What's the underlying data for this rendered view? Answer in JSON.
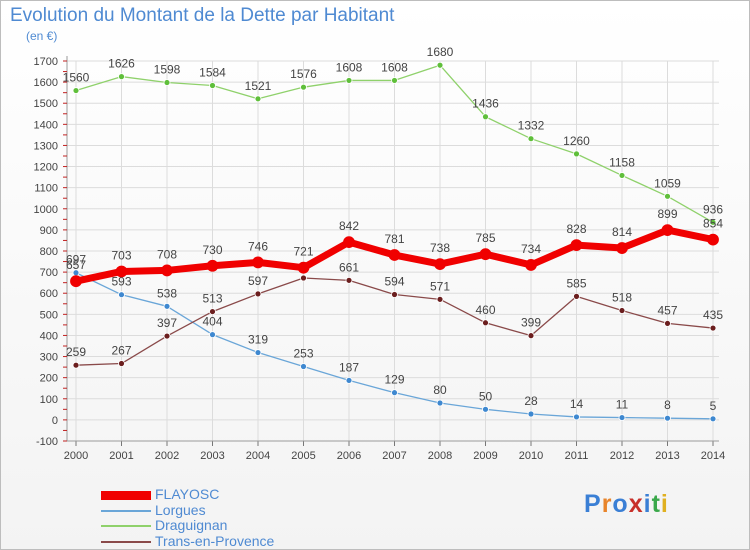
{
  "title": "Evolution du Montant de la Dette par Habitant",
  "subtitle": "(en €)",
  "logo": {
    "text": "Proxiti",
    "letters": [
      "P",
      "r",
      "o",
      "x",
      "i",
      "t",
      "i"
    ],
    "colors": [
      "#3a7fd5",
      "#e8842a",
      "#3a7fd5",
      "#c8302a",
      "#3a7fd5",
      "#3aa84a",
      "#e0b020"
    ]
  },
  "chart_data": {
    "type": "line",
    "x": [
      "2000",
      "2001",
      "2002",
      "2003",
      "2004",
      "2005",
      "2006",
      "2007",
      "2008",
      "2009",
      "2010",
      "2011",
      "2012",
      "2013",
      "2014"
    ],
    "ylim": [
      -100,
      1700
    ],
    "yticks": [
      -100,
      0,
      100,
      200,
      300,
      400,
      500,
      600,
      700,
      800,
      900,
      1000,
      1100,
      1200,
      1300,
      1400,
      1500,
      1600,
      1700
    ],
    "grid": true,
    "legend_position": "bottom-left",
    "series": [
      {
        "name": "Draguignan",
        "color": "#8fd16b",
        "marker": "#5fbf3a",
        "width": 1.3,
        "values": [
          1560,
          1626,
          1598,
          1584,
          1521,
          1576,
          1608,
          1608,
          1680,
          1436,
          1332,
          1260,
          1158,
          1059,
          936
        ]
      },
      {
        "name": "Lorgues",
        "color": "#6aa6d8",
        "marker": "#3e88d0",
        "width": 1.3,
        "values": [
          697,
          593,
          538,
          404,
          319,
          253,
          187,
          129,
          80,
          50,
          28,
          14,
          11,
          8,
          5
        ]
      },
      {
        "name": "Trans-en-Provence",
        "color": "#8a4a4a",
        "marker": "#6b1e1e",
        "width": 1.3,
        "values": [
          259,
          267,
          397,
          513,
          597,
          672,
          661,
          594,
          571,
          460,
          399,
          585,
          518,
          457,
          435
        ]
      },
      {
        "name": "FLAYOSC",
        "color": "#f00000",
        "marker": "#f00000",
        "width": 7,
        "values": [
          657,
          703,
          708,
          730,
          746,
          721,
          842,
          781,
          738,
          785,
          734,
          828,
          814,
          899,
          854
        ]
      }
    ],
    "data_labels": {
      "Draguignan": [
        "1560",
        "1626",
        "1598",
        "1584",
        "1521",
        "1576",
        "1608",
        "1608",
        "1680",
        "1436",
        "1332",
        "1260",
        "1158",
        "1059",
        "936"
      ],
      "Lorgues": [
        "697",
        "593",
        "538",
        "404",
        "319",
        "253",
        "187",
        "129",
        "80",
        "50",
        "28",
        "14",
        "11",
        "8",
        "5"
      ],
      "Trans-en-Provence": [
        "259",
        "267",
        "397",
        "513",
        "597",
        "",
        "661",
        "594",
        "571",
        "460",
        "399",
        "585",
        "518",
        "457",
        "435"
      ],
      "FLAYOSC": [
        "657",
        "703",
        "708",
        "730",
        "746",
        "721",
        "842",
        "781",
        "738",
        "785",
        "734",
        "828",
        "814",
        "899",
        "854"
      ]
    },
    "legend": [
      {
        "name": "FLAYOSC",
        "color": "#f00000",
        "thick": true
      },
      {
        "name": "Lorgues",
        "color": "#6aa6d8",
        "thick": false
      },
      {
        "name": "Draguignan",
        "color": "#8fd16b",
        "thick": false
      },
      {
        "name": "Trans-en-Provence",
        "color": "#8a4a4a",
        "thick": false
      }
    ]
  }
}
